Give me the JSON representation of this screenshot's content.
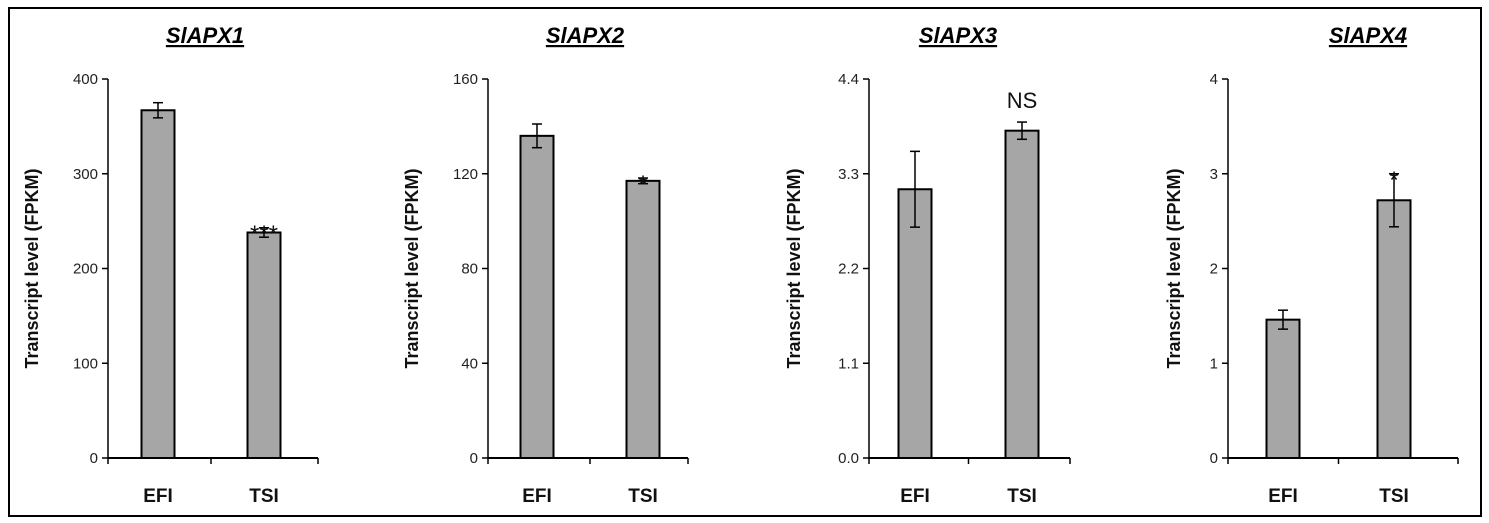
{
  "figure": {
    "colors": {
      "bar_fill": "#a6a6a6",
      "bar_stroke": "#000000",
      "axis": "#000000",
      "frame": "#000000",
      "background": "#ffffff"
    }
  },
  "chart_data": [
    {
      "type": "bar",
      "title": "SlAPX1",
      "ylabel": "Transcript level (FPKM)",
      "xlabel": "",
      "categories": [
        "EFI",
        "TSI"
      ],
      "values": [
        367,
        238
      ],
      "errors": [
        8,
        5
      ],
      "ylim": [
        0,
        400
      ],
      "yticks": [
        0,
        100,
        200,
        300,
        400
      ],
      "ytick_labels": [
        "0",
        "100",
        "200",
        "300",
        "400"
      ],
      "annotations": [
        "",
        "***"
      ]
    },
    {
      "type": "bar",
      "title": "SlAPX2",
      "ylabel": "Transcript level (FPKM)",
      "xlabel": "",
      "categories": [
        "EFI",
        "TSI"
      ],
      "values": [
        136,
        117
      ],
      "errors": [
        5,
        1.2
      ],
      "ylim": [
        0,
        160
      ],
      "yticks": [
        0,
        40,
        80,
        120,
        160
      ],
      "ytick_labels": [
        "0",
        "40",
        "80",
        "120",
        "160"
      ],
      "annotations": [
        "",
        "*"
      ]
    },
    {
      "type": "bar",
      "title": "SlAPX3",
      "ylabel": "Transcript level (FPKM)",
      "xlabel": "",
      "categories": [
        "EFI",
        "TSI"
      ],
      "values": [
        3.12,
        3.8
      ],
      "errors": [
        0.44,
        0.1
      ],
      "ylim": [
        0,
        4.4
      ],
      "yticks": [
        0,
        1.1,
        2.2,
        3.3,
        4.4
      ],
      "ytick_labels": [
        "0.0",
        "1.1",
        "2.2",
        "3.3",
        "4.4"
      ],
      "annotations": [
        "",
        "NS"
      ]
    },
    {
      "type": "bar",
      "title": "SlAPX4",
      "ylabel": "Transcript level (FPKM)",
      "xlabel": "",
      "categories": [
        "EFI",
        "TSI"
      ],
      "values": [
        1.46,
        2.72
      ],
      "errors": [
        0.1,
        0.28
      ],
      "ylim": [
        0,
        4
      ],
      "yticks": [
        0,
        1,
        2,
        3,
        4
      ],
      "ytick_labels": [
        "0",
        "1",
        "2",
        "3",
        "4"
      ],
      "annotations": [
        "",
        "*"
      ]
    }
  ]
}
